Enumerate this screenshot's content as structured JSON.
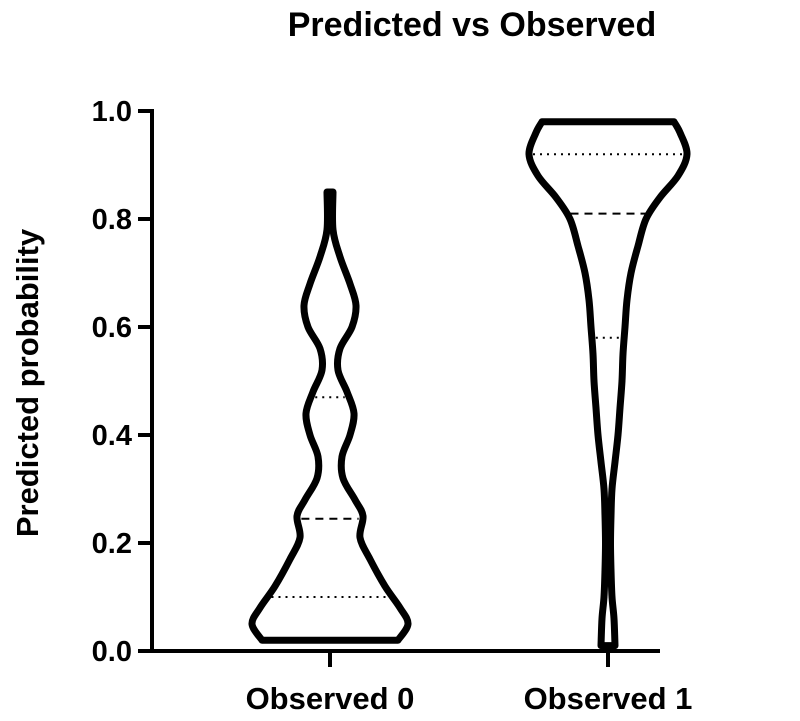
{
  "chart_data": {
    "type": "violin",
    "title": "Predicted vs Observed",
    "ylabel": "Predicted probability",
    "xlabel": "",
    "ylim": [
      0,
      1
    ],
    "yticks": [
      "0.0",
      "0.2",
      "0.4",
      "0.6",
      "0.8",
      "1.0"
    ],
    "categories": [
      "Observed 0",
      "Observed 1"
    ],
    "series": [
      {
        "category": "Observed 0",
        "min": 0.02,
        "max": 0.85,
        "q1": 0.1,
        "median": 0.245,
        "q3": 0.47,
        "density": [
          [
            0.02,
            0.68
          ],
          [
            0.05,
            0.78
          ],
          [
            0.08,
            0.7
          ],
          [
            0.12,
            0.55
          ],
          [
            0.17,
            0.4
          ],
          [
            0.21,
            0.3
          ],
          [
            0.25,
            0.33
          ],
          [
            0.28,
            0.25
          ],
          [
            0.32,
            0.13
          ],
          [
            0.36,
            0.12
          ],
          [
            0.4,
            0.2
          ],
          [
            0.44,
            0.24
          ],
          [
            0.48,
            0.17
          ],
          [
            0.52,
            0.08
          ],
          [
            0.56,
            0.1
          ],
          [
            0.6,
            0.22
          ],
          [
            0.64,
            0.26
          ],
          [
            0.68,
            0.2
          ],
          [
            0.73,
            0.1
          ],
          [
            0.78,
            0.03
          ],
          [
            0.85,
            0.03
          ]
        ]
      },
      {
        "category": "Observed 1",
        "min": 0.01,
        "max": 0.98,
        "q1": 0.58,
        "median": 0.81,
        "q3": 0.92,
        "density": [
          [
            0.01,
            0.07
          ],
          [
            0.06,
            0.06
          ],
          [
            0.1,
            0.04
          ],
          [
            0.15,
            0.03
          ],
          [
            0.2,
            0.025
          ],
          [
            0.25,
            0.03
          ],
          [
            0.3,
            0.04
          ],
          [
            0.35,
            0.07
          ],
          [
            0.4,
            0.1
          ],
          [
            0.45,
            0.12
          ],
          [
            0.5,
            0.14
          ],
          [
            0.55,
            0.15
          ],
          [
            0.6,
            0.17
          ],
          [
            0.65,
            0.19
          ],
          [
            0.7,
            0.23
          ],
          [
            0.75,
            0.3
          ],
          [
            0.8,
            0.38
          ],
          [
            0.84,
            0.52
          ],
          [
            0.88,
            0.7
          ],
          [
            0.92,
            0.79
          ],
          [
            0.96,
            0.72
          ],
          [
            0.98,
            0.66
          ]
        ]
      }
    ]
  }
}
